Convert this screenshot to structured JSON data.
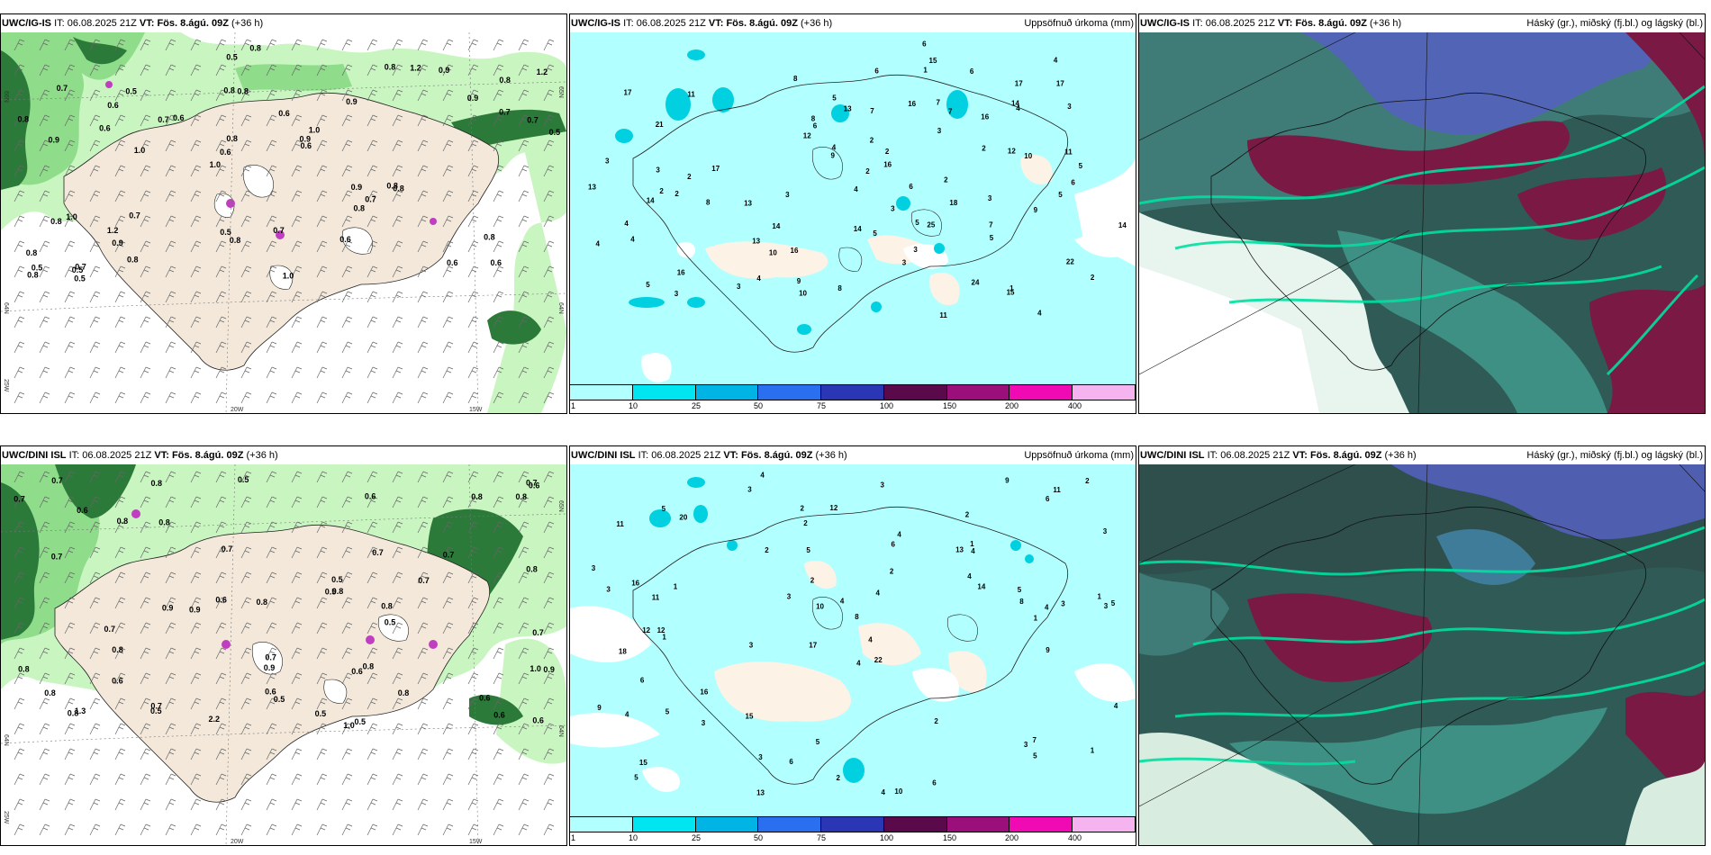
{
  "header_common": {
    "issue_label": "IT:",
    "issue_time": "06.08.2025 21Z",
    "valid_label": "VT:",
    "valid_time": "Fös. 8.ágú. 09Z",
    "lead": "(+36 h)"
  },
  "models": {
    "top": "UWC/IG-IS",
    "bottom": "UWC/DINI ISL"
  },
  "titles": {
    "precip": "Uppsöfnuð úrkoma (mm)",
    "clouds": "Háský (gr.), miðský (fj.bl.) og lágský (bl.)"
  },
  "axes": {
    "lon_20w": "20W",
    "lon_15w": "15W",
    "lat_65n": "65N",
    "lat_64n": "64N",
    "lat_66n": "66N",
    "lon_25w": "25W"
  },
  "colorbar": {
    "ticks": [
      "1",
      "10",
      "25",
      "50",
      "75",
      "100",
      "150",
      "200",
      "400"
    ],
    "colors": [
      "#b2ffff",
      "#00e5f0",
      "#00b4e6",
      "#2a6ff0",
      "#2a36b4",
      "#5a0a4a",
      "#9b0f7a",
      "#f00ab4",
      "#f5b4f0"
    ]
  },
  "palette": {
    "land": "#f3e8da",
    "rh_light": "#c8f5c0",
    "rh_mid": "#8fdc8a",
    "rh_dark": "#2c7a3a",
    "precip_bg": "#b2ffff",
    "cloud_dark": "#2f5a55",
    "cloud_teal": "#3f9a8c",
    "cloud_purple": "#7a3a6a",
    "cloud_maroon": "#7a1a44",
    "cloud_blue": "#5560c0"
  },
  "rh_labels_top": [
    "0.6",
    "0.9",
    "0.8",
    "1.0",
    "0.9",
    "0.7",
    "0.8",
    "0.6",
    "1.0",
    "0.6",
    "0.8",
    "0.9",
    "0.8",
    "1.0",
    "0.8",
    "0.7",
    "0.5",
    "0.5",
    "0.9",
    "0.7",
    "0.6",
    "0.5",
    "0.8",
    "0.5",
    "0.8",
    "0.7",
    "0.6",
    "0.8",
    "0.8",
    "1.0",
    "0.7",
    "0.6",
    "0.8",
    "0.8",
    "0.7",
    "0.9",
    "0.5",
    "0.8",
    "0.6",
    "0.8",
    "0.9",
    "1.2",
    "0.7",
    "0.6",
    "1.2",
    "0.5",
    "0.8",
    "0.7",
    "0.9",
    "0.8",
    "1.0",
    "0.8",
    "0.6",
    "1.2",
    "0.5"
  ],
  "rh_labels_bottom": [
    "2.2",
    "1.0",
    "0.7",
    "0.8",
    "0.8",
    "0.6",
    "0.9",
    "0.6",
    "0.5",
    "0.7",
    "0.8",
    "0.5",
    "0.6",
    "0.9",
    "0.6",
    "0.5",
    "0.7",
    "0.5",
    "0.9",
    "0.7",
    "0.6",
    "0.6",
    "0.5",
    "0.8",
    "0.7",
    "0.7",
    "0.8",
    "0.8",
    "0.7",
    "0.5",
    "0.8",
    "0.5",
    "0.7",
    "0.8",
    "0.6",
    "0.8",
    "1.0",
    "0.8",
    "0.7",
    "0.6",
    "0.8",
    "0.7",
    "0.9",
    "1.3",
    "0.8",
    "0.8",
    "0.7",
    "0.5",
    "0.8",
    "0.6",
    "0.7",
    "0.8",
    "0.6"
  ],
  "precip_labels_top": [
    "4",
    "2",
    "5",
    "17",
    "22",
    "21",
    "16",
    "13",
    "16",
    "13",
    "7",
    "15",
    "10",
    "8",
    "6",
    "4",
    "3",
    "2",
    "3",
    "5",
    "4",
    "7",
    "12",
    "14",
    "6",
    "3",
    "8",
    "4",
    "9",
    "17",
    "25",
    "14",
    "13",
    "7",
    "8",
    "9",
    "5",
    "24",
    "17",
    "11",
    "14",
    "5",
    "4",
    "6",
    "3",
    "2",
    "3",
    "15",
    "16",
    "14",
    "18",
    "11",
    "7",
    "10",
    "12",
    "13",
    "10",
    "4",
    "3",
    "2",
    "9",
    "14",
    "11",
    "6",
    "4",
    "4",
    "17",
    "16",
    "6",
    "4",
    "5",
    "8",
    "3",
    "2",
    "3",
    "5",
    "5",
    "3",
    "2",
    "1",
    "2",
    "2",
    "1",
    "3",
    "2",
    "3",
    "6",
    "16"
  ],
  "precip_labels_bottom": [
    "4",
    "2",
    "3",
    "17",
    "22",
    "12",
    "11",
    "13",
    "18",
    "6",
    "8",
    "5",
    "3",
    "3",
    "4",
    "10",
    "5",
    "9",
    "14",
    "16",
    "11",
    "12",
    "5",
    "3",
    "9",
    "16",
    "10",
    "8",
    "7",
    "4",
    "3",
    "4",
    "5",
    "3",
    "2",
    "4",
    "5",
    "6",
    "2",
    "12",
    "15",
    "13",
    "6",
    "5",
    "2",
    "4",
    "5",
    "1",
    "3",
    "4",
    "2",
    "1",
    "4",
    "6",
    "3",
    "3",
    "2",
    "4",
    "11",
    "5",
    "1",
    "9",
    "20",
    "15",
    "4",
    "3",
    "4",
    "1",
    "2",
    "3",
    "6",
    "2",
    "1",
    "4",
    "2",
    "1",
    "3"
  ]
}
